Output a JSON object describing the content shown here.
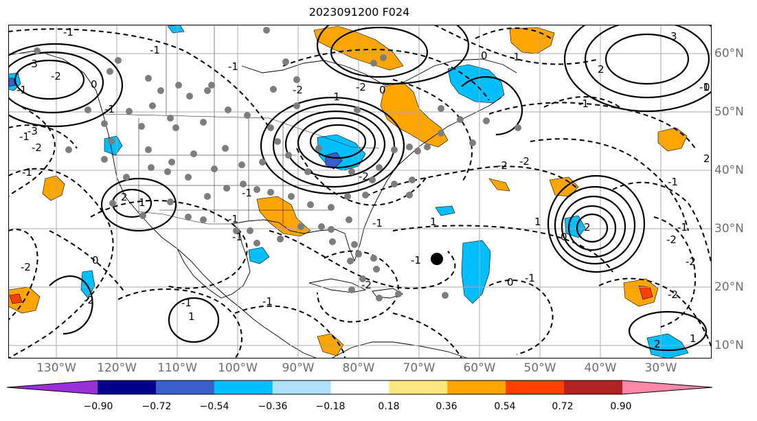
{
  "title": "2023091200 F024",
  "lon_labels": [
    "130°W",
    "120°W",
    "110°W",
    "100°W",
    "90°W",
    "80°W",
    "70°W",
    "60°W",
    "50°W",
    "40°W",
    "30°W"
  ],
  "lat_labels": [
    "60°N",
    "50°N",
    "40°N",
    "30°N",
    "20°N",
    "10°N"
  ],
  "colorbar": {
    "ticks": [
      "−0.90",
      "−0.72",
      "−0.54",
      "−0.36",
      "−0.18",
      "0.18",
      "0.36",
      "0.54",
      "0.72",
      "0.90"
    ],
    "colors": [
      "#9b30d9",
      "#00008b",
      "#3a5fcd",
      "#00bfff",
      "#b0e0ff",
      "#ffffff",
      "#ffe680",
      "#ffa500",
      "#ff4000",
      "#b22222",
      "#ff88aa"
    ]
  },
  "contour_labels": [
    "-1",
    "-1",
    "-1",
    "-2",
    "-3",
    "-2",
    "-1",
    "0",
    "0",
    "-2",
    "-1",
    "-1",
    "-2",
    "-1",
    "-3",
    "-2",
    "-1",
    "2",
    "-1",
    "-2",
    "0",
    "-1",
    "0",
    "-1",
    "-2",
    "-2",
    "-2",
    "-1",
    "-1",
    "-1",
    "2",
    "1",
    "1",
    "-2",
    "-1",
    "2",
    "-1",
    "0",
    "1",
    "-2",
    "0",
    "-2",
    "-1",
    "2",
    "3",
    "1",
    "-1",
    "-1",
    "-2",
    "2",
    "0",
    "-1",
    "1",
    "-1"
  ]
}
